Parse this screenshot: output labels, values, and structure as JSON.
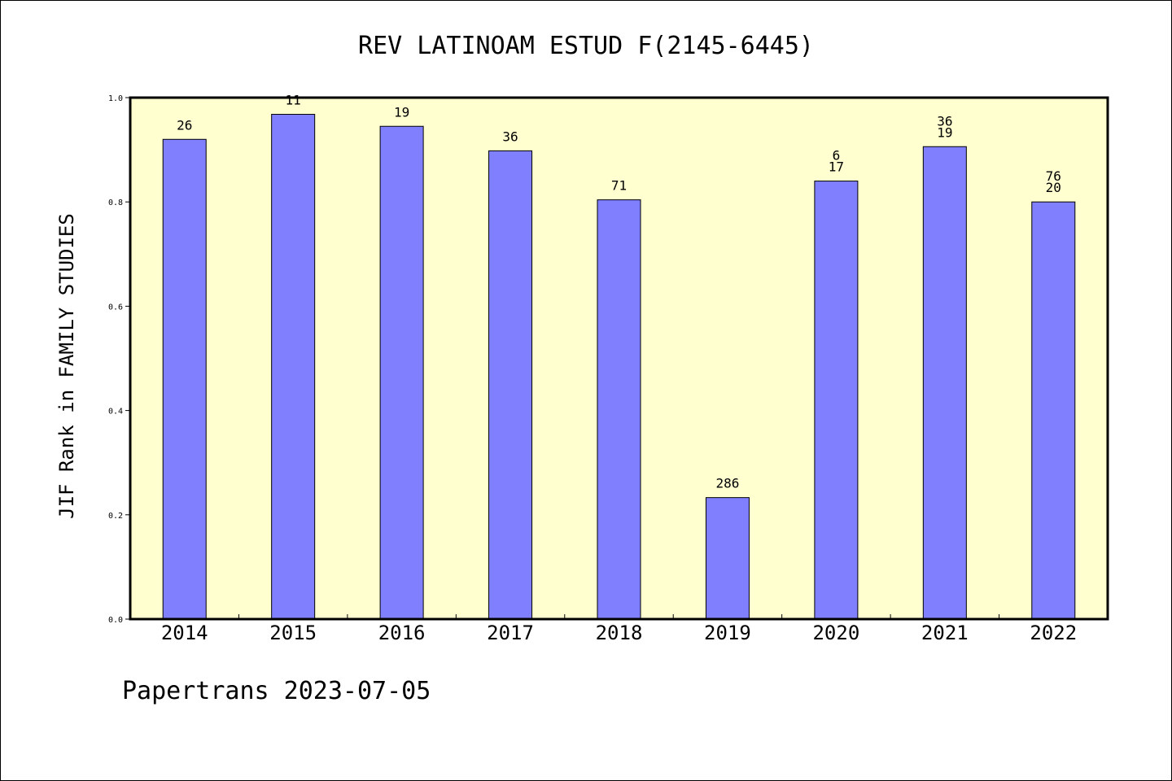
{
  "chart_data": {
    "type": "bar",
    "title": "REV LATINOAM ESTUD F(2145-6445)",
    "ylabel": "JIF Rank in FAMILY STUDIES",
    "xlabel": "",
    "categories": [
      "2014",
      "2015",
      "2016",
      "2017",
      "2018",
      "2019",
      "2020",
      "2021",
      "2022"
    ],
    "values": [
      0.92,
      0.968,
      0.945,
      0.898,
      0.804,
      0.233,
      0.84,
      0.906,
      0.8
    ],
    "bar_labels": [
      [
        "26"
      ],
      [
        "11"
      ],
      [
        "19"
      ],
      [
        "36"
      ],
      [
        "71"
      ],
      [
        "286"
      ],
      [
        "6",
        "17"
      ],
      [
        "36",
        "19"
      ],
      [
        "76",
        "20"
      ]
    ],
    "ylim": [
      0,
      1.0
    ],
    "yticks": [
      "0.0",
      "0.2",
      "0.4",
      "0.6",
      "0.8",
      "1.0"
    ],
    "grid": false,
    "colors": {
      "bar": "#8080ff",
      "plot_background": "#ffffd0",
      "axis": "#000000"
    }
  },
  "footer": {
    "text": "Papertrans 2023-07-05"
  }
}
